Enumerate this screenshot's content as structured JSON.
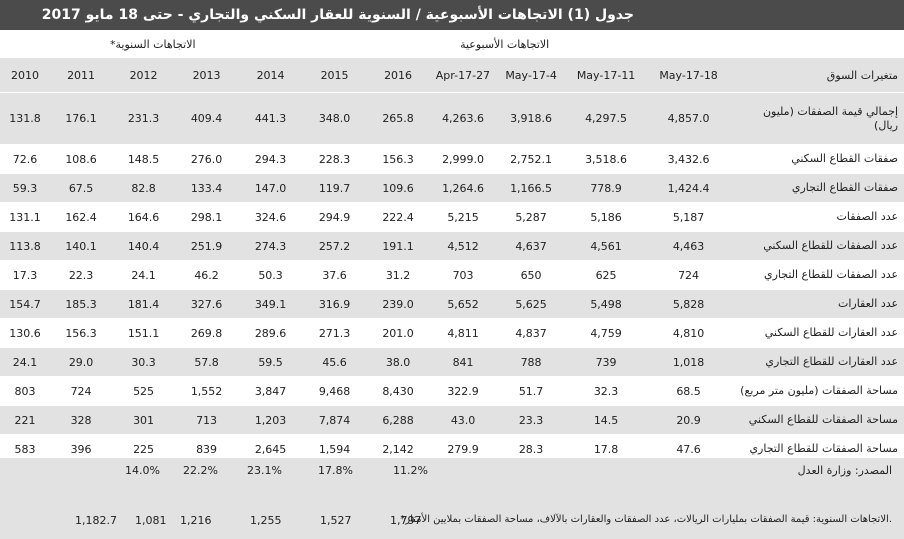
{
  "header": {
    "title": "جدول (1) الاتجاهات الأسبوعية / السنوية للعقار السكني والتجاري - حتى 18 مايو 2017"
  },
  "table": {
    "groups": [
      "الاتجاهات الأسبوعية",
      "الاتجاهات السنوية*"
    ],
    "columns": [
      "متغيرات السوق",
      "18-May-17",
      "11-May-17",
      "4-May-17",
      "27-Apr-17",
      "2016",
      "2015",
      "2014",
      "2013",
      "2012",
      "2011",
      "2010"
    ],
    "rows": [
      [
        "إجمالي قيمة الصفقات (مليون ريال)",
        "4,857.0",
        "4,297.5",
        "3,918.6",
        "4,263.6",
        "265.8",
        "348.0",
        "441.3",
        "409.4",
        "231.3",
        "176.1",
        "131.8"
      ],
      [
        "صفقات القطاع السكني",
        "3,432.6",
        "3,518.6",
        "2,752.1",
        "2,999.0",
        "156.3",
        "228.3",
        "294.3",
        "276.0",
        "148.5",
        "108.6",
        "72.6"
      ],
      [
        "صفقات القطاع التجاري",
        "1,424.4",
        "778.9",
        "1,166.5",
        "1,264.6",
        "109.6",
        "119.7",
        "147.0",
        "133.4",
        "82.8",
        "67.5",
        "59.3"
      ],
      [
        "عدد الصفقات",
        "5,187",
        "5,186",
        "5,287",
        "5,215",
        "222.4",
        "294.9",
        "324.6",
        "298.1",
        "164.6",
        "162.4",
        "131.1"
      ],
      [
        "عدد الصفقات للقطاع السكني",
        "4,463",
        "4,561",
        "4,637",
        "4,512",
        "191.1",
        "257.2",
        "274.3",
        "251.9",
        "140.4",
        "140.1",
        "113.8"
      ],
      [
        "عدد الصفقات للقطاع التجاري",
        "724",
        "625",
        "650",
        "703",
        "31.2",
        "37.6",
        "50.3",
        "46.2",
        "24.1",
        "22.3",
        "17.3"
      ],
      [
        "عدد العقارات",
        "5,828",
        "5,498",
        "5,625",
        "5,652",
        "239.0",
        "316.9",
        "349.1",
        "327.6",
        "181.4",
        "185.3",
        "154.7"
      ],
      [
        "عدد العقارات للقطاع السكني",
        "4,810",
        "4,759",
        "4,837",
        "4,811",
        "201.0",
        "271.3",
        "289.6",
        "269.8",
        "151.1",
        "156.3",
        "130.6"
      ],
      [
        "عدد العقارات للقطاع التجاري",
        "1,018",
        "739",
        "788",
        "841",
        "38.0",
        "45.6",
        "59.5",
        "57.8",
        "30.3",
        "29.0",
        "24.1"
      ],
      [
        "مساحة الصفقات (مليون متر مربع)",
        "68.5",
        "32.3",
        "51.7",
        "322.9",
        "8,430",
        "9,468",
        "3,847",
        "1,552",
        "525",
        "724",
        "803"
      ],
      [
        "مساحة الصفقات للقطاع السكني",
        "20.9",
        "14.5",
        "23.3",
        "43.0",
        "6,288",
        "7,874",
        "1,203",
        "713",
        "301",
        "328",
        "221"
      ],
      [
        "مساحة الصفقات للقطاع التجاري",
        "47.6",
        "17.8",
        "28.3",
        "279.9",
        "2,142",
        "1,594",
        "2,645",
        "839",
        "225",
        "396",
        "583"
      ]
    ]
  },
  "footer": {
    "source": "المصدر: وزارة العدل",
    "note": "*الاتجاهات السنوية: قيمة الصفقات بمليارات الريالات، عدد الصفقات والعقارات بالآلاف، مساحة الصفقات بملايين الأمتار.",
    "percentages": [
      "14.0%",
      "22.2%",
      "23.1%",
      "17.8%",
      "11.2%"
    ],
    "totals": [
      "1,182.7",
      "1,081",
      "1,216",
      "1,255",
      "1,527",
      "1,797"
    ]
  }
}
